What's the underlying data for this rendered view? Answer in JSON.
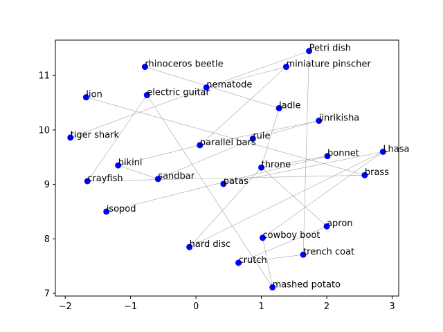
{
  "chart_data": {
    "type": "scatter",
    "title": "",
    "xlabel": "",
    "ylabel": "",
    "xlim": [
      -2.15,
      3.1
    ],
    "ylim": [
      6.95,
      11.65
    ],
    "xticks": [
      -2,
      -1,
      0,
      1,
      2,
      3
    ],
    "yticks": [
      7,
      8,
      9,
      10,
      11
    ],
    "grid": false,
    "point_color": "#0000ff",
    "edge_color": "#a0a0a0",
    "points": [
      {
        "label": "Petri dish",
        "x": 1.73,
        "y": 11.45
      },
      {
        "label": "rhinoceros beetle",
        "x": -0.78,
        "y": 11.16
      },
      {
        "label": "miniature pinscher",
        "x": 1.38,
        "y": 11.16
      },
      {
        "label": "nematode",
        "x": 0.16,
        "y": 10.78
      },
      {
        "label": "lion",
        "x": -1.68,
        "y": 10.6
      },
      {
        "label": "electric guitar",
        "x": -0.75,
        "y": 10.64
      },
      {
        "label": "ladle",
        "x": 1.27,
        "y": 10.4
      },
      {
        "label": "jinrikisha",
        "x": 1.88,
        "y": 10.17
      },
      {
        "label": "tiger shark",
        "x": -1.92,
        "y": 9.86
      },
      {
        "label": "rule",
        "x": 0.87,
        "y": 9.84
      },
      {
        "label": "parallel bars",
        "x": 0.06,
        "y": 9.72
      },
      {
        "label": "Lhasa",
        "x": 2.86,
        "y": 9.6
      },
      {
        "label": "bonnet",
        "x": 2.01,
        "y": 9.52
      },
      {
        "label": "bikini",
        "x": -1.19,
        "y": 9.35
      },
      {
        "label": "throne",
        "x": 1.0,
        "y": 9.31
      },
      {
        "label": "brass",
        "x": 2.58,
        "y": 9.17
      },
      {
        "label": "sandbar",
        "x": -0.58,
        "y": 9.1
      },
      {
        "label": "crayfish",
        "x": -1.66,
        "y": 9.06
      },
      {
        "label": "patas",
        "x": 0.42,
        "y": 9.01
      },
      {
        "label": "isopod",
        "x": -1.37,
        "y": 8.5
      },
      {
        "label": "apron",
        "x": 2.0,
        "y": 8.23
      },
      {
        "label": "cowboy boot",
        "x": 1.02,
        "y": 8.02
      },
      {
        "label": "hard disc",
        "x": -0.1,
        "y": 7.85
      },
      {
        "label": "trench coat",
        "x": 1.64,
        "y": 7.71
      },
      {
        "label": "crutch",
        "x": 0.65,
        "y": 7.56
      },
      {
        "label": "mashed potato",
        "x": 1.17,
        "y": 7.11
      }
    ],
    "edges": [
      [
        "Petri dish",
        "nematode"
      ],
      [
        "Petri dish",
        "trench coat"
      ],
      [
        "rhinoceros beetle",
        "ladle"
      ],
      [
        "miniature pinscher",
        "nematode"
      ],
      [
        "miniature pinscher",
        "parallel bars"
      ],
      [
        "nematode",
        "tiger shark"
      ],
      [
        "lion",
        "brass"
      ],
      [
        "electric guitar",
        "crayfish"
      ],
      [
        "electric guitar",
        "mashed potato"
      ],
      [
        "ladle",
        "throne"
      ],
      [
        "jinrikisha",
        "parallel bars"
      ],
      [
        "jinrikisha",
        "rule"
      ],
      [
        "rule",
        "sandbar"
      ],
      [
        "parallel bars",
        "bikini"
      ],
      [
        "Lhasa",
        "hard disc"
      ],
      [
        "Lhasa",
        "patas"
      ],
      [
        "Lhasa",
        "cowboy boot"
      ],
      [
        "bonnet",
        "throne"
      ],
      [
        "bonnet",
        "isopod"
      ],
      [
        "throne",
        "apron"
      ],
      [
        "throne",
        "hard disc"
      ],
      [
        "brass",
        "crayfish"
      ],
      [
        "bikini",
        "sandbar"
      ],
      [
        "crutch",
        "trench coat"
      ],
      [
        "crutch",
        "apron"
      ],
      [
        "cowboy boot",
        "mashed potato"
      ]
    ]
  }
}
